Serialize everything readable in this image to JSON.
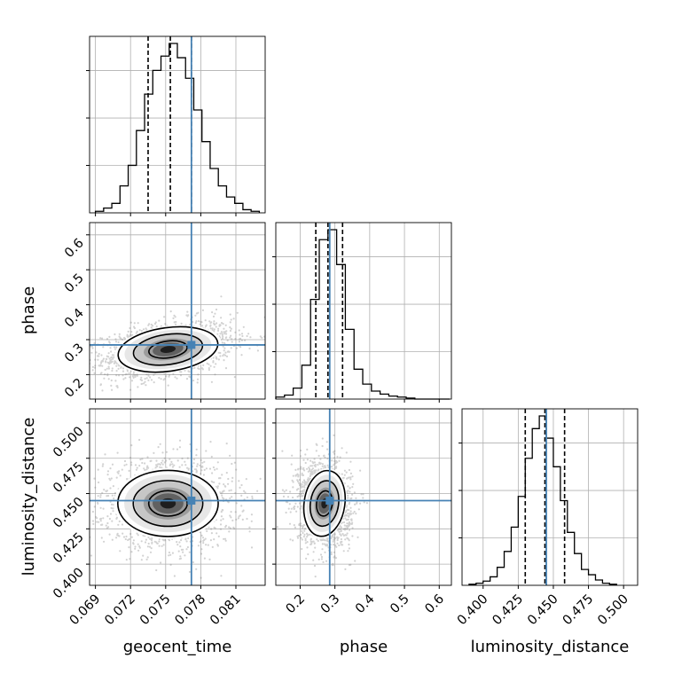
{
  "chart_data": {
    "type": "corner",
    "parameters": [
      {
        "name": "geocent_time",
        "truth": 0.0772,
        "range": [
          0.0685,
          0.0835
        ],
        "ticks": [
          "0.069",
          "0.072",
          "0.075",
          "0.078",
          "0.081"
        ],
        "tick_values": [
          0.069,
          0.072,
          0.075,
          0.078,
          0.081
        ],
        "quantiles": [
          0.0735,
          0.0754,
          0.0772
        ]
      },
      {
        "name": "phase",
        "truth": 0.285,
        "range": [
          0.13,
          0.635
        ],
        "ticks": [
          "0.2",
          "0.3",
          "0.4",
          "0.5",
          "0.6"
        ],
        "tick_values": [
          0.2,
          0.3,
          0.4,
          0.5,
          0.6
        ],
        "ticks_y": [
          "0.2",
          "0.3",
          "0.4",
          "0.5",
          "0.6"
        ],
        "tick_values_y": [
          0.2,
          0.3,
          0.4,
          0.5,
          0.6
        ],
        "quantiles": [
          0.245,
          0.28,
          0.322
        ]
      },
      {
        "name": "luminosity_distance",
        "truth": 0.445,
        "range": [
          0.385,
          0.51
        ],
        "ticks": [
          "0.400",
          "0.425",
          "0.450",
          "0.475",
          "0.500"
        ],
        "tick_values": [
          0.4,
          0.425,
          0.45,
          0.475,
          0.5
        ],
        "quantiles": [
          0.43,
          0.444,
          0.458
        ]
      }
    ],
    "diagonal_histograms": [
      {
        "parameter": "geocent_time",
        "bin_edges": [
          0.069,
          0.0697,
          0.0704,
          0.0711,
          0.0718,
          0.0725,
          0.0732,
          0.0739,
          0.0746,
          0.0753,
          0.076,
          0.0767,
          0.0774,
          0.0781,
          0.0788,
          0.0795,
          0.0802,
          0.0809,
          0.0816,
          0.0823,
          0.083
        ],
        "counts": [
          1,
          3,
          6,
          17,
          30,
          52,
          75,
          90,
          99,
          107,
          98,
          85,
          65,
          45,
          28,
          17,
          10,
          6,
          2,
          1
        ]
      },
      {
        "parameter": "phase",
        "bin_edges": [
          0.13,
          0.155,
          0.18,
          0.205,
          0.23,
          0.255,
          0.28,
          0.305,
          0.33,
          0.355,
          0.38,
          0.405,
          0.43,
          0.455,
          0.48,
          0.505,
          0.53,
          0.555,
          0.58,
          0.605,
          0.63
        ],
        "counts": [
          2,
          4,
          11,
          34,
          100,
          160,
          170,
          135,
          70,
          30,
          15,
          8,
          5,
          3,
          2,
          1,
          0,
          0,
          0,
          0
        ]
      },
      {
        "parameter": "luminosity_distance",
        "bin_edges": [
          0.39,
          0.395,
          0.4,
          0.405,
          0.41,
          0.415,
          0.42,
          0.425,
          0.43,
          0.435,
          0.44,
          0.445,
          0.45,
          0.455,
          0.46,
          0.465,
          0.47,
          0.475,
          0.48,
          0.485,
          0.49,
          0.495
        ],
        "counts": [
          1,
          2,
          4,
          8,
          17,
          32,
          55,
          84,
          120,
          148,
          160,
          139,
          112,
          80,
          50,
          30,
          15,
          10,
          5,
          2,
          1
        ]
      }
    ],
    "pair_panels": [
      {
        "x": "geocent_time",
        "y": "phase",
        "center": [
          0.0752,
          0.272
        ],
        "spread": [
          0.0022,
          0.032
        ],
        "correlation": 0.35
      },
      {
        "x": "geocent_time",
        "y": "luminosity_distance",
        "center": [
          0.0752,
          0.443
        ],
        "spread": [
          0.0022,
          0.012
        ],
        "correlation": 0.0
      },
      {
        "x": "phase",
        "y": "luminosity_distance",
        "center": [
          0.27,
          0.443
        ],
        "spread": [
          0.03,
          0.012
        ],
        "correlation": -0.1
      }
    ],
    "contour_levels": [
      0.5,
      1.0,
      1.5
    ],
    "grid": true,
    "truth_color": "#4682b4",
    "hist_color": "#000000",
    "scatter_color": "#7f7f7f",
    "xlabel": [
      "geocent_time",
      "phase",
      "luminosity_distance"
    ],
    "ylabel": [
      "phase",
      "luminosity_distance"
    ]
  }
}
